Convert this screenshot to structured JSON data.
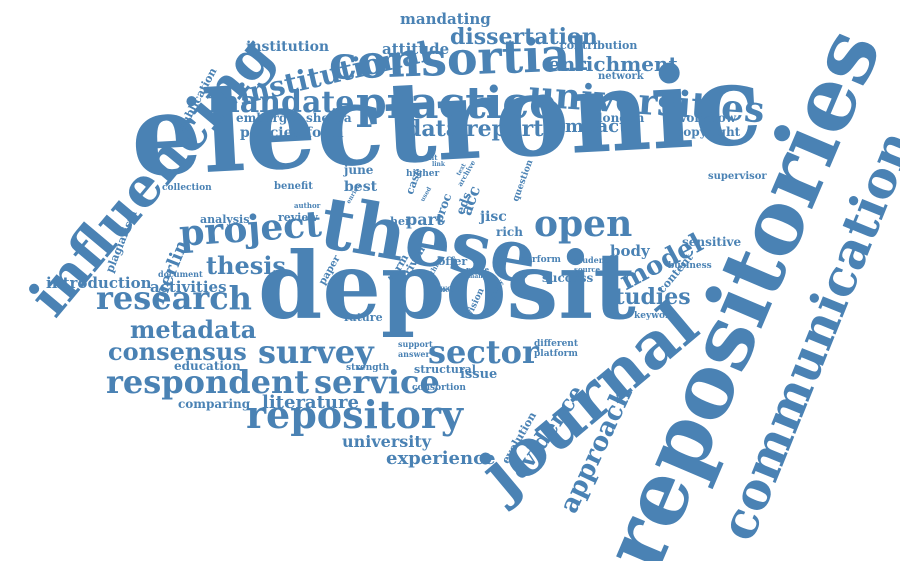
{
  "color": "#4a82b4",
  "words": {
    "electronic": "electronic",
    "repositories": "repositories",
    "deposit": "deposit",
    "these": "these",
    "journal": "journal",
    "communication": "communication",
    "influencing": "influencing",
    "consortial": "consortial",
    "practice": "practice",
    "universities": "universities",
    "mandate": "mandate",
    "project": "project",
    "open": "open",
    "research": "research",
    "repository": "repository",
    "respondent": "respondent",
    "service": "service",
    "sector": "sector",
    "survey": "survey",
    "consensus": "consensus",
    "metadata": "metadata",
    "thesis": "thesis",
    "institutional": "institutional",
    "dissertation": "dissertation",
    "enrichment": "enrichment",
    "mandating": "mandating",
    "attitude": "attitude",
    "institution": "institution",
    "report": "report",
    "data": "data",
    "impact": "impact",
    "model": "model",
    "approach": "approach",
    "evidence": "evidence",
    "experience": "experience",
    "university": "university",
    "literature": "literature",
    "studies": "studies",
    "merlin": "merlin",
    "introduction": "introduction",
    "activities": "activities",
    "policies": "policies",
    "form": "form",
    "embargo": "embargo",
    "sherpa": "sherpa",
    "publication": "publication",
    "contribution": "contribution",
    "workflow": "workflow",
    "copyright": "copyright",
    "london": "london",
    "network": "network",
    "supervisor": "supervisor",
    "sensitive": "sensitive",
    "body": "body",
    "content": "content",
    "business": "business",
    "keyword": "keyword",
    "success": "success",
    "evolution": "evolution",
    "comparing": "comparing",
    "education": "education",
    "plagiarism": "plagiarism",
    "collection": "collection",
    "analysis": "analysis",
    "review": "review",
    "benefit": "benefit",
    "june": "june",
    "best": "best",
    "case": "case",
    "part": "part",
    "jisc": "jisc",
    "rich": "rich",
    "acc": "acc",
    "eds": "eds",
    "hei": "hei",
    "paper": "paper",
    "term": "term",
    "driven": "driven",
    "offer": "offer",
    "perform": "perform",
    "student": "student",
    "source": "source",
    "future": "future",
    "support": "support",
    "answer": "answer",
    "strength": "strength",
    "structural": "structural",
    "consortion": "consortion",
    "issue": "issue",
    "different": "different",
    "platform": "platform",
    "question": "question",
    "higher": "higher",
    "current": "current",
    "archive": "archive",
    "document": "document",
    "author": "author",
    "vision": "vision",
    "work": "work",
    "party": "party",
    "relate": "relate",
    "many": "many",
    "proc": "proc",
    "third": "third",
    "enrich": "enrich",
    "used": "used",
    "link": "link",
    "need": "need",
    "text": "text"
  }
}
